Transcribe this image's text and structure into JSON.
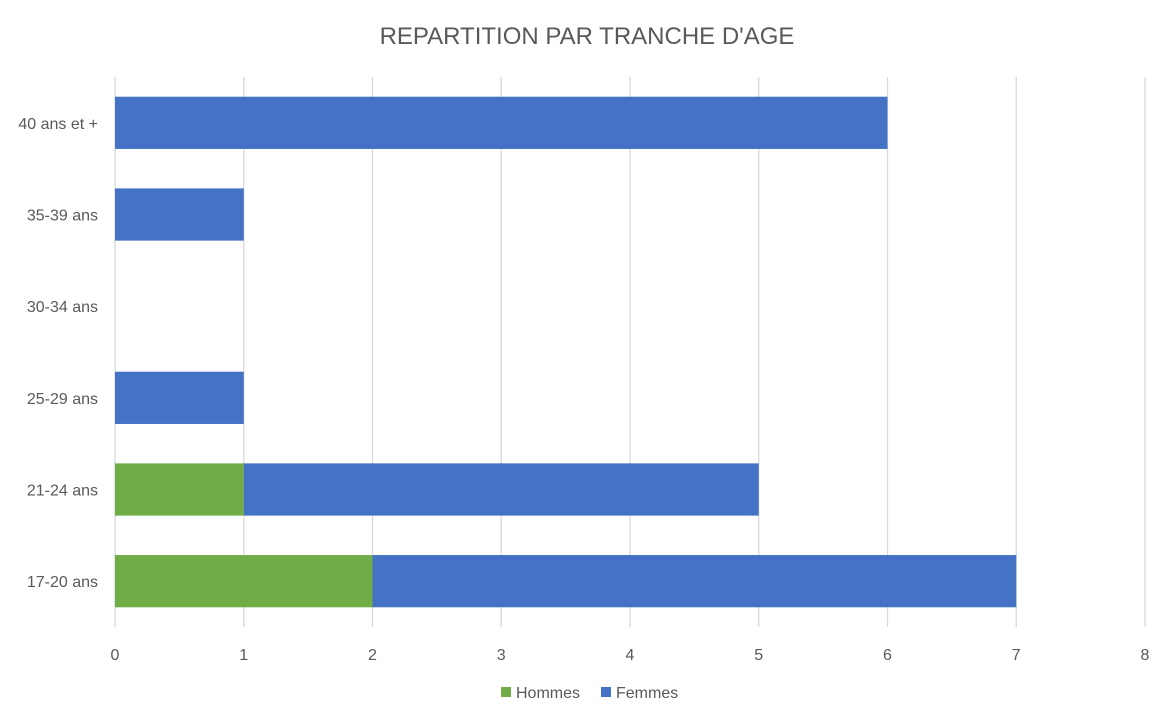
{
  "chart_data": {
    "type": "bar",
    "orientation": "horizontal",
    "stacked": true,
    "title": "REPARTITION PAR TRANCHE D'AGE",
    "categories": [
      "17-20 ans",
      "21-24 ans",
      "25-29 ans",
      "30-34 ans",
      "35-39 ans",
      "40 ans et +"
    ],
    "series": [
      {
        "name": "Hommes",
        "values": [
          2,
          1,
          0,
          0,
          0,
          0
        ],
        "color": "#70ad47"
      },
      {
        "name": "Femmes",
        "values": [
          5,
          4,
          1,
          0,
          1,
          6
        ],
        "color": "#4472c4"
      }
    ],
    "xlim": [
      0,
      8
    ],
    "x_ticks": [
      "0",
      "1",
      "2",
      "3",
      "4",
      "5",
      "6",
      "7",
      "8"
    ],
    "grid": true,
    "legend_position": "bottom"
  }
}
